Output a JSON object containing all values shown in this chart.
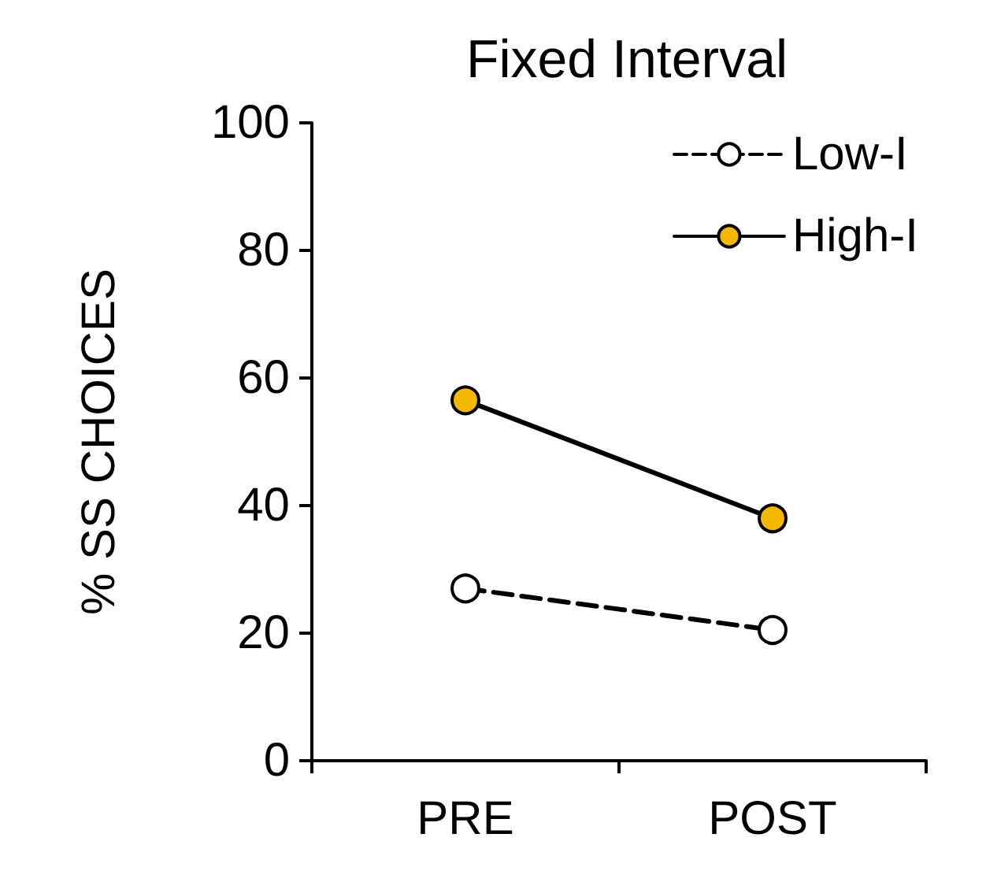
{
  "chart_data": {
    "type": "line",
    "title": "Fixed Interval",
    "ylabel": "% SS CHOICES",
    "categories": [
      "PRE",
      "POST"
    ],
    "series": [
      {
        "name": "Low-I",
        "color": "#ffffff",
        "line_style": "dashed",
        "values": [
          27,
          20.5
        ]
      },
      {
        "name": "High-I",
        "color": "#f5b800",
        "line_style": "solid",
        "values": [
          56.5,
          38
        ]
      }
    ],
    "ylim": [
      0,
      100
    ],
    "yticks": [
      0,
      20,
      40,
      60,
      80,
      100
    ],
    "grid": false,
    "legend": "top right",
    "marker": "circle"
  }
}
